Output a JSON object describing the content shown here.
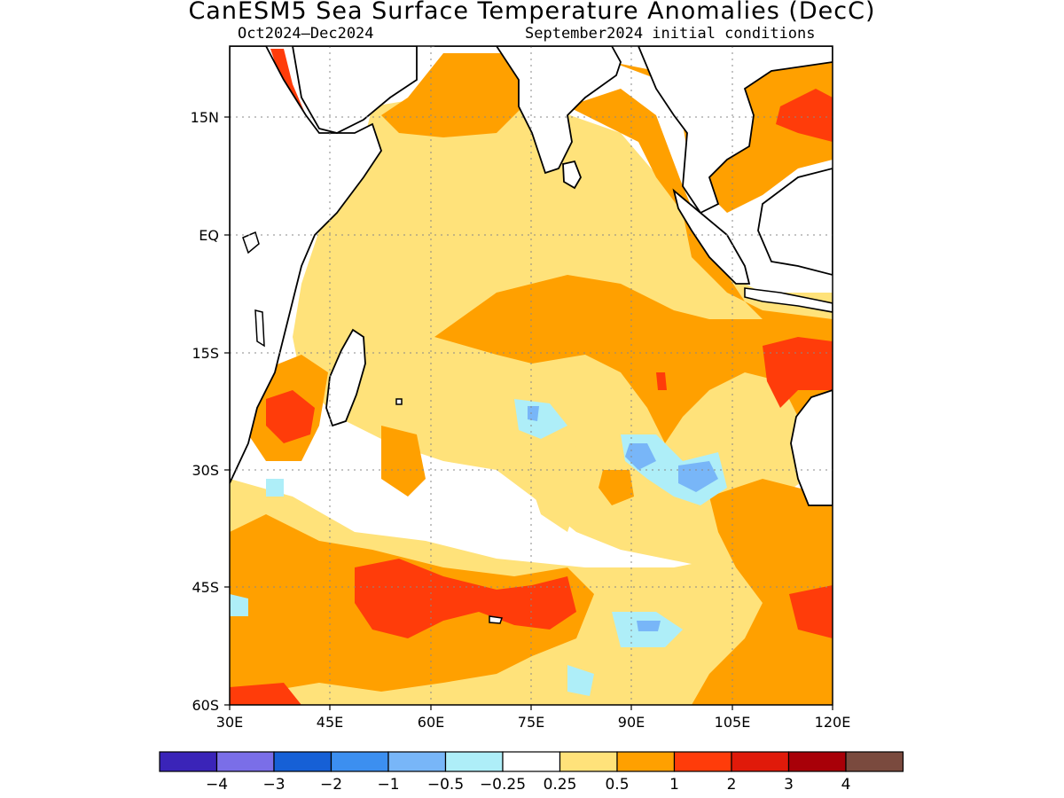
{
  "title": "CanESM5 Sea Surface Temperature Anomalies (DecC)",
  "subtitle_left": "Oct2024–Dec2024",
  "subtitle_right": "September2024 initial conditions",
  "map": {
    "region": "Indian Ocean",
    "lon_range": [
      30,
      120
    ],
    "lat_range": [
      -60,
      24
    ],
    "lon_ticks": [
      "30E",
      "45E",
      "60E",
      "75E",
      "90E",
      "105E",
      "120E"
    ],
    "lat_ticks": [
      "15N",
      "EQ",
      "15S",
      "30S",
      "45S",
      "60S"
    ],
    "grid": "dotted"
  },
  "colorbar": {
    "colors": [
      "#3a24b8",
      "#7a6ee8",
      "#1660d6",
      "#3c8ff0",
      "#78b6f8",
      "#aeeef8",
      "#ffffff",
      "#ffe27a",
      "#ffa000",
      "#ff3c0a",
      "#e01a0a",
      "#a80008",
      "#7a4a3e"
    ],
    "labels": [
      "−4",
      "−3",
      "−2",
      "−1",
      "−0.5",
      "−0.25",
      "0.25",
      "0.5",
      "1",
      "2",
      "3",
      "4"
    ]
  }
}
